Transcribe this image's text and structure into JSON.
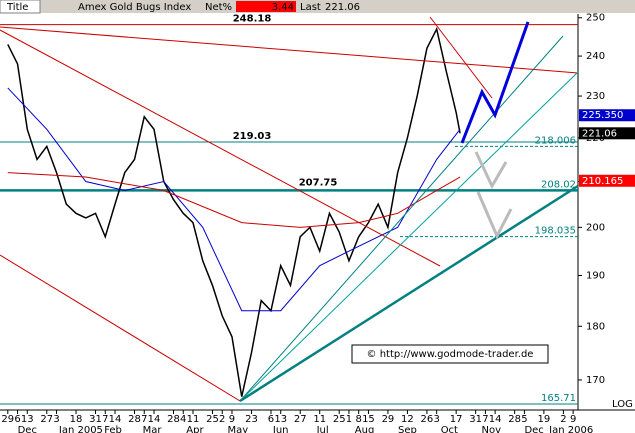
{
  "header": {
    "field": "Title",
    "name": "Amex Gold Bugs Index",
    "net_label": "Net%",
    "net": 3.44,
    "last_label": "Last",
    "last": 221.06
  },
  "chart_data": {
    "type": "line",
    "log_scale": true,
    "x": [
      0,
      1,
      2,
      3,
      4,
      5,
      6,
      7,
      8,
      9,
      10,
      11,
      12,
      13,
      14,
      15,
      16,
      17,
      18,
      19,
      20,
      21,
      22,
      23,
      24,
      25,
      26,
      27,
      28,
      29,
      30,
      31,
      32,
      33,
      34,
      35,
      36,
      37,
      38,
      39,
      40,
      41,
      42,
      43,
      44,
      45,
      46,
      46.4
    ],
    "series": [
      {
        "name": "Amex Gold Bugs Index",
        "color": "#000000",
        "values": [
          243,
          238,
          222,
          215,
          218,
          212,
          205,
          203,
          202,
          203,
          198,
          205,
          212,
          215,
          225,
          222,
          210,
          206,
          203,
          201,
          193,
          188,
          182,
          178,
          167,
          175,
          185,
          183,
          192,
          188,
          198,
          200,
          195,
          203,
          199,
          193,
          198,
          201,
          205,
          200,
          212,
          220,
          230,
          242,
          247,
          236,
          226,
          221.06
        ]
      },
      {
        "name": "MA fast",
        "color": "#0000cc",
        "x": [
          0,
          4,
          8,
          12,
          16,
          20,
          24,
          28,
          32,
          36,
          40,
          44,
          46.4
        ],
        "values": [
          232,
          222,
          210,
          208,
          210,
          200,
          183,
          183,
          192,
          196,
          200,
          215,
          222
        ]
      },
      {
        "name": "MA slow",
        "color": "#cc0000",
        "x": [
          0,
          8,
          16,
          24,
          30,
          36,
          40,
          44,
          46.4
        ],
        "values": [
          212,
          211,
          208,
          201,
          200,
          201,
          203,
          208,
          211
        ]
      }
    ],
    "xlim": [
      -0.8,
      58.5
    ],
    "ylim": [
      165,
      251
    ],
    "yticks": [
      170,
      180,
      190,
      200,
      210,
      220,
      230,
      240,
      250
    ],
    "xticks": [
      {
        "value": 0,
        "label": "29"
      },
      {
        "value": 1,
        "label": "6"
      },
      {
        "value": 2,
        "label": "13"
      },
      {
        "value": 4,
        "label": "27"
      },
      {
        "value": 5,
        "label": "3"
      },
      {
        "value": 7,
        "label": "18"
      },
      {
        "value": 9,
        "label": "31"
      },
      {
        "value": 10,
        "label": "7"
      },
      {
        "value": 11,
        "label": "14"
      },
      {
        "value": 13,
        "label": "28"
      },
      {
        "value": 14,
        "label": "7"
      },
      {
        "value": 15,
        "label": "14"
      },
      {
        "value": 17,
        "label": "28"
      },
      {
        "value": 18,
        "label": "4"
      },
      {
        "value": 19,
        "label": "11"
      },
      {
        "value": 21,
        "label": "25"
      },
      {
        "value": 22,
        "label": "2"
      },
      {
        "value": 23,
        "label": "9"
      },
      {
        "value": 25,
        "label": "23"
      },
      {
        "value": 27,
        "label": "6"
      },
      {
        "value": 28,
        "label": "13"
      },
      {
        "value": 30,
        "label": "27"
      },
      {
        "value": 32,
        "label": "11"
      },
      {
        "value": 34,
        "label": "25"
      },
      {
        "value": 35,
        "label": "1"
      },
      {
        "value": 36,
        "label": "8"
      },
      {
        "value": 37,
        "label": "15"
      },
      {
        "value": 39,
        "label": "29"
      },
      {
        "value": 41,
        "label": "12"
      },
      {
        "value": 43,
        "label": "26"
      },
      {
        "value": 44,
        "label": "3"
      },
      {
        "value": 46,
        "label": "17"
      },
      {
        "value": 48,
        "label": "31"
      },
      {
        "value": 49,
        "label": "7"
      },
      {
        "value": 50,
        "label": "14"
      },
      {
        "value": 52,
        "label": "28"
      },
      {
        "value": 53,
        "label": "5"
      },
      {
        "value": 55,
        "label": "19"
      },
      {
        "value": 57,
        "label": "2"
      },
      {
        "value": 58,
        "label": "9"
      }
    ],
    "months": [
      {
        "value": 2,
        "label": "Dec"
      },
      {
        "value": 7.5,
        "label": "Jan 2005"
      },
      {
        "value": 10.8,
        "label": "Feb"
      },
      {
        "value": 14.8,
        "label": "Mar"
      },
      {
        "value": 19.2,
        "label": "Apr"
      },
      {
        "value": 23.6,
        "label": "May"
      },
      {
        "value": 28,
        "label": "Jun"
      },
      {
        "value": 32.3,
        "label": "Jul"
      },
      {
        "value": 36.6,
        "label": "Aug"
      },
      {
        "value": 41,
        "label": "Sep"
      },
      {
        "value": 45.3,
        "label": "Oct"
      },
      {
        "value": 49.6,
        "label": "Nov"
      },
      {
        "value": 54,
        "label": "Dec"
      },
      {
        "value": 57.8,
        "label": "Jan 2006"
      }
    ],
    "levels": [
      {
        "value": 248.18,
        "color": "#cc0000",
        "dashed": false,
        "width": 1,
        "side": "left"
      },
      {
        "value": 219.03,
        "color": "#008080",
        "dashed": false,
        "width": 1,
        "side": "left"
      },
      {
        "value": 208.02,
        "color": "#008080",
        "dashed": false,
        "width": 2.5,
        "side": "right"
      },
      {
        "value": 218.006,
        "color": "#008080",
        "dashed": true,
        "width": 1,
        "side": "right"
      },
      {
        "value": 198.035,
        "color": "#008080",
        "dashed": true,
        "width": 1,
        "side": "right"
      },
      {
        "value": 165.71,
        "color": "#008080",
        "dashed": false,
        "width": 1,
        "side": "right"
      }
    ],
    "peak_label": 207.75,
    "price_labels": [
      {
        "value": 225.35,
        "label": "225.350",
        "color": "#0000cc"
      },
      {
        "value": 221.06,
        "label": "221.06",
        "color": "#000000"
      },
      {
        "value": 210.165,
        "label": "210.165",
        "color": "#ff0000"
      }
    ],
    "scale_note": "LOG",
    "copyright": "© http://www.godmode-trader.de"
  }
}
